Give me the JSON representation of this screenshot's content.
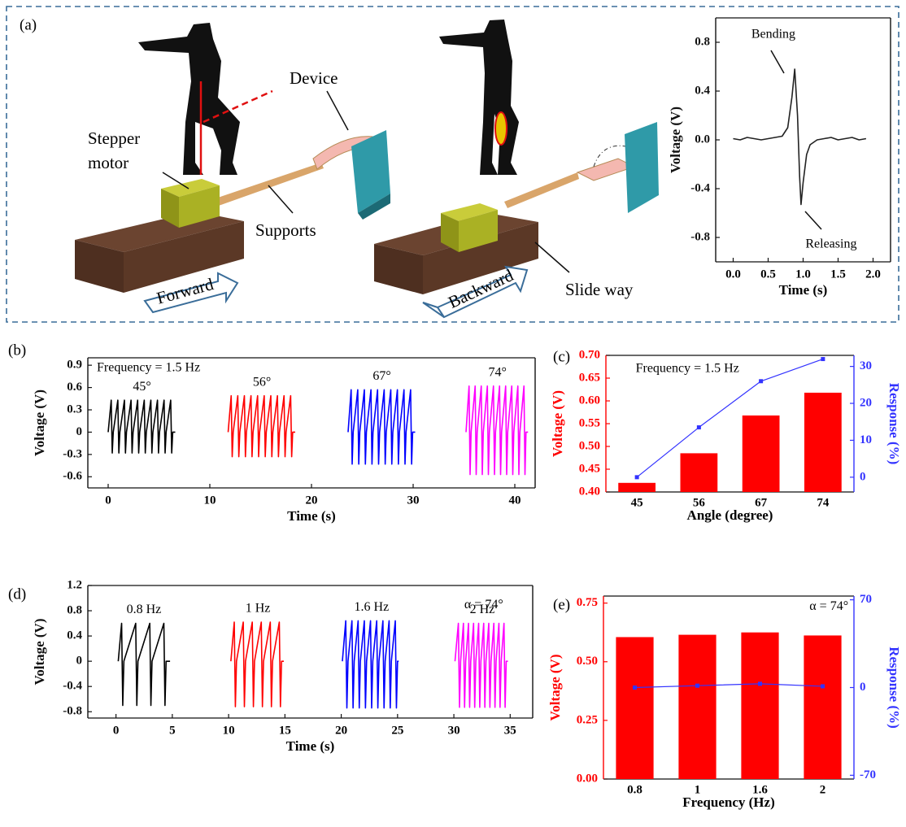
{
  "panel_labels": [
    "(a)",
    "(b)",
    "(c)",
    "(d)",
    "(e)"
  ],
  "diagram": {
    "stepper_motor": [
      "Stepper",
      "motor"
    ],
    "device": "Device",
    "supports": "Supports",
    "forward": "Forward",
    "backward": "Backward",
    "slide_way": "Slide way"
  },
  "chart_data": [
    {
      "type": "line",
      "xlabel": "Time (s)",
      "ylabel": "Voltage (V)",
      "annotations": [
        "Bending",
        "Releasing"
      ],
      "x": [
        0,
        0.1,
        0.2,
        0.3,
        0.4,
        0.5,
        0.6,
        0.7,
        0.78,
        0.84,
        0.88,
        0.92,
        0.95,
        0.97,
        1.0,
        1.05,
        1.1,
        1.2,
        1.3,
        1.4,
        1.5,
        1.6,
        1.7,
        1.8,
        1.9
      ],
      "series": [
        {
          "color": "#222222",
          "values": [
            0.01,
            0,
            0.02,
            0.01,
            0,
            0.01,
            0.02,
            0.03,
            0.1,
            0.35,
            0.58,
            0.2,
            -0.3,
            -0.53,
            -0.35,
            -0.12,
            -0.04,
            0,
            0.01,
            0.02,
            0,
            0.01,
            0.02,
            0,
            0.01
          ]
        }
      ],
      "xlim": [
        -0.25,
        2.25
      ],
      "xticks": [
        {
          "value": 0,
          "label": "0.0"
        },
        0.5,
        {
          "value": 1,
          "label": "1.0"
        },
        1.5,
        {
          "value": 2,
          "label": "2.0"
        }
      ],
      "ylim": [
        -1.0,
        1.0
      ],
      "yticks": [
        -0.8,
        -0.4,
        {
          "value": 0,
          "label": "0.0"
        },
        0.4,
        0.8
      ]
    },
    {
      "type": "line",
      "xlabel": "Time (s)",
      "ylabel": "Voltage (V)",
      "annotations": [
        "Frequency = 1.5 Hz"
      ],
      "series": [
        {
          "name": "45°",
          "color": "#000000",
          "x": [
            0,
            0.3,
            0.4,
            0.5,
            0.95,
            1.05,
            1.15,
            1.6,
            1.7,
            1.8,
            2.25,
            2.35,
            2.45,
            2.9,
            3.0,
            3.1,
            3.55,
            3.65,
            3.75,
            4.2,
            4.3,
            4.4,
            4.85,
            4.95,
            5.05,
            5.5,
            5.6,
            5.7,
            6.15,
            6.25,
            6.35,
            6.6
          ],
          "values": [
            0,
            0.43,
            -0.28,
            0,
            0.43,
            -0.28,
            0,
            0.43,
            -0.28,
            0,
            0.43,
            -0.28,
            0,
            0.43,
            -0.28,
            0,
            0.43,
            -0.28,
            0,
            0.43,
            -0.28,
            0,
            0.43,
            -0.28,
            0,
            0.43,
            -0.28,
            0,
            0.43,
            -0.28,
            0,
            0
          ]
        },
        {
          "name": "56°",
          "color": "#ff0000",
          "x": [
            11.8,
            12.1,
            12.2,
            12.3,
            12.75,
            12.85,
            12.95,
            13.4,
            13.5,
            13.6,
            14.05,
            14.15,
            14.25,
            14.7,
            14.8,
            14.9,
            15.35,
            15.45,
            15.55,
            16.0,
            16.1,
            16.2,
            16.65,
            16.75,
            16.85,
            17.3,
            17.4,
            17.5,
            17.95,
            18.05,
            18.15,
            18.4
          ],
          "values": [
            0,
            0.49,
            -0.33,
            0,
            0.49,
            -0.33,
            0,
            0.49,
            -0.33,
            0,
            0.49,
            -0.33,
            0,
            0.49,
            -0.33,
            0,
            0.49,
            -0.33,
            0,
            0.49,
            -0.33,
            0,
            0.49,
            -0.33,
            0,
            0.49,
            -0.33,
            0,
            0.49,
            -0.33,
            0,
            0
          ]
        },
        {
          "name": "67°",
          "color": "#0000ff",
          "x": [
            23.6,
            23.9,
            24.0,
            24.1,
            24.55,
            24.65,
            24.75,
            25.2,
            25.3,
            25.4,
            25.85,
            25.95,
            26.05,
            26.5,
            26.6,
            26.7,
            27.15,
            27.25,
            27.35,
            27.8,
            27.9,
            28.0,
            28.45,
            28.55,
            28.65,
            29.1,
            29.2,
            29.3,
            29.75,
            29.85,
            29.95,
            30.2
          ],
          "values": [
            0,
            0.57,
            -0.43,
            0,
            0.57,
            -0.43,
            0,
            0.57,
            -0.43,
            0,
            0.57,
            -0.43,
            0,
            0.57,
            -0.43,
            0,
            0.57,
            -0.43,
            0,
            0.57,
            -0.43,
            0,
            0.57,
            -0.43,
            0,
            0.57,
            -0.43,
            0,
            0.57,
            -0.43,
            0,
            0
          ]
        },
        {
          "name": "74°",
          "color": "#ff00ff",
          "x": [
            35.2,
            35.5,
            35.6,
            35.7,
            36.1,
            36.2,
            36.3,
            36.7,
            36.8,
            36.9,
            37.3,
            37.4,
            37.5,
            37.9,
            38.0,
            38.1,
            38.5,
            38.6,
            38.7,
            39.1,
            39.2,
            39.3,
            39.7,
            39.8,
            39.9,
            40.3,
            40.4,
            40.5,
            40.9,
            41.0,
            41.1,
            41.3
          ],
          "values": [
            0,
            0.62,
            -0.57,
            0,
            0.62,
            -0.57,
            0,
            0.62,
            -0.57,
            0,
            0.62,
            -0.57,
            0,
            0.62,
            -0.57,
            0,
            0.62,
            -0.57,
            0,
            0.62,
            -0.57,
            0,
            0.62,
            -0.57,
            0,
            0.62,
            -0.57,
            0,
            0.62,
            -0.57,
            0,
            0
          ]
        }
      ],
      "xlim": [
        -2,
        42
      ],
      "xticks": [
        0,
        10,
        20,
        30,
        40
      ],
      "ylim": [
        -0.75,
        1.0
      ],
      "yticks": [
        -0.6,
        -0.3,
        0,
        0.3,
        0.6,
        0.9
      ]
    },
    {
      "type": "bar",
      "xlabel": "Angle (degree)",
      "ylabel": "Voltage (V)",
      "y2label": "Response (%)",
      "annotations": [
        "Frequency = 1.5 Hz"
      ],
      "categories": [
        "45",
        "56",
        "67",
        "74"
      ],
      "series": [
        {
          "color": "#ff0000",
          "values": [
            0.42,
            0.485,
            0.568,
            0.618
          ]
        },
        {
          "type": "line",
          "axis": "y2",
          "color": "#3333ff",
          "values": [
            0,
            13.5,
            26,
            32
          ]
        }
      ],
      "ylim": [
        0.4,
        0.7
      ],
      "yticks": [
        {
          "value": 0.4,
          "label": "0.40"
        },
        0.45,
        {
          "value": 0.5,
          "label": "0.50"
        },
        0.55,
        {
          "value": 0.6,
          "label": "0.60"
        },
        0.65,
        {
          "value": 0.7,
          "label": "0.70"
        }
      ],
      "y2lim": [
        -4,
        33
      ],
      "y2ticks": [
        0,
        10,
        20,
        30
      ]
    },
    {
      "type": "line",
      "xlabel": "Time (s)",
      "ylabel": "Voltage (V)",
      "annotations": [
        "α = 74°"
      ],
      "series": [
        {
          "name": "0.8 Hz",
          "color": "#000000",
          "x": [
            0.2,
            0.5,
            0.6,
            0.7,
            1.75,
            1.85,
            1.95,
            3.0,
            3.1,
            3.2,
            4.25,
            4.35,
            4.45,
            4.8
          ],
          "values": [
            0,
            0.6,
            -0.7,
            0,
            0.6,
            -0.7,
            0,
            0.6,
            -0.7,
            0,
            0.6,
            -0.7,
            0,
            0
          ]
        },
        {
          "name": "1 Hz",
          "color": "#ff0000",
          "x": [
            10.2,
            10.5,
            10.6,
            10.7,
            11.3,
            11.4,
            11.5,
            12.1,
            12.2,
            12.3,
            12.9,
            13.0,
            13.1,
            13.7,
            13.8,
            13.9,
            14.5,
            14.6,
            14.7,
            14.9
          ],
          "values": [
            0,
            0.62,
            -0.72,
            0,
            0.62,
            -0.72,
            0,
            0.62,
            -0.72,
            0,
            0.62,
            -0.72,
            0,
            0.62,
            -0.72,
            0,
            0.62,
            -0.72,
            0,
            0
          ]
        },
        {
          "name": "1.6 Hz",
          "color": "#0000ff",
          "x": [
            20.1,
            20.4,
            20.5,
            20.6,
            20.95,
            21.05,
            21.15,
            21.5,
            21.6,
            21.7,
            22.05,
            22.15,
            22.25,
            22.6,
            22.7,
            22.8,
            23.15,
            23.25,
            23.35,
            23.7,
            23.8,
            23.9,
            24.25,
            24.35,
            24.45,
            24.8,
            24.9,
            25.0,
            25.1
          ],
          "values": [
            0,
            0.64,
            -0.74,
            0,
            0.64,
            -0.74,
            0,
            0.64,
            -0.74,
            0,
            0.64,
            -0.74,
            0,
            0.64,
            -0.74,
            0,
            0.64,
            -0.74,
            0,
            0.64,
            -0.74,
            0,
            0.64,
            -0.74,
            0,
            0.64,
            -0.74,
            0,
            0
          ]
        },
        {
          "name": "2 Hz",
          "color": "#ff00ff",
          "x": [
            30.1,
            30.4,
            30.5,
            30.6,
            30.85,
            30.95,
            31.05,
            31.3,
            31.4,
            31.5,
            31.75,
            31.85,
            31.95,
            32.2,
            32.3,
            32.4,
            32.65,
            32.75,
            32.85,
            33.1,
            33.2,
            33.3,
            33.55,
            33.65,
            33.75,
            34.0,
            34.1,
            34.2,
            34.45,
            34.55,
            34.65,
            34.8
          ],
          "values": [
            0,
            0.6,
            -0.73,
            0,
            0.6,
            -0.73,
            0,
            0.6,
            -0.73,
            0,
            0.6,
            -0.73,
            0,
            0.6,
            -0.73,
            0,
            0.6,
            -0.73,
            0,
            0.6,
            -0.73,
            0,
            0.6,
            -0.73,
            0,
            0.6,
            -0.73,
            0,
            0.6,
            -0.73,
            0,
            0
          ]
        }
      ],
      "xlim": [
        -2.5,
        37
      ],
      "xticks": [
        0,
        5,
        10,
        15,
        20,
        25,
        30,
        35
      ],
      "ylim": [
        -0.9,
        1.2
      ],
      "yticks": [
        -0.8,
        -0.4,
        0,
        0.4,
        0.8,
        1.2
      ]
    },
    {
      "type": "bar",
      "xlabel": "Frequency (Hz)",
      "ylabel": "Voltage (V)",
      "y2label": "Response (%)",
      "annotations": [
        "α = 74°"
      ],
      "categories": [
        "0.8",
        "1",
        "1.6",
        "2"
      ],
      "series": [
        {
          "color": "#ff0000",
          "values": [
            0.605,
            0.615,
            0.625,
            0.612
          ]
        },
        {
          "type": "line",
          "axis": "y2",
          "color": "#3333ff",
          "values": [
            0,
            1.5,
            3,
            1
          ]
        }
      ],
      "ylim": [
        0,
        0.78
      ],
      "yticks": [
        {
          "value": 0,
          "label": "0.00"
        },
        0.25,
        {
          "value": 0.5,
          "label": "0.50"
        },
        0.75
      ],
      "y2lim": [
        -73,
        73
      ],
      "y2ticks": [
        -70,
        0,
        70
      ]
    }
  ]
}
